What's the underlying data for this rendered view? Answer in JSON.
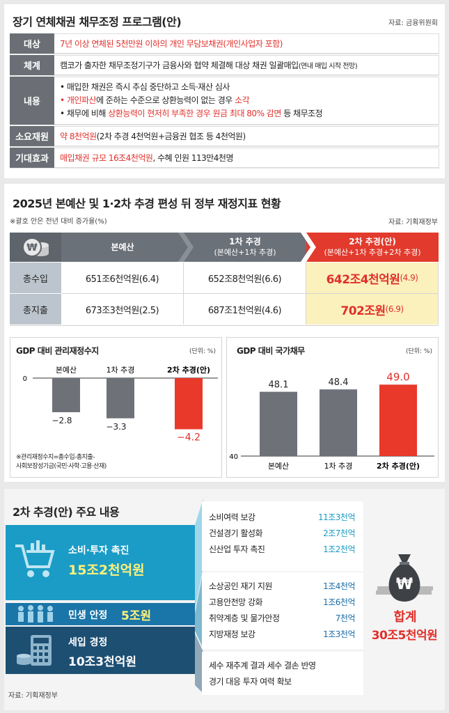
{
  "section1": {
    "title": "장기 연체채권 채무조정 프로그램(안)",
    "source": "자료: 금융위원회",
    "rows": [
      {
        "label": "대상",
        "value": "7년 이상 연체된 5천만원 이하의 개인 무담보채권(개인사업자 포함)"
      },
      {
        "label": "체계",
        "value_main": "캠코가 출자한 채무조정기구가 금융사와 협약 체결해 대상 채권 일괄매입",
        "value_note": "(연내 매입 시작 전망)"
      },
      {
        "label": "내용",
        "bullet1": "• 매입한 채권은 즉시 추심 중단하고 소득·재산 심사",
        "bullet2_red": "• 개인파산",
        "bullet2_mid": "에 준하는 수준으로 상환능력이 없는 경우 ",
        "bullet2_red2": "소각",
        "bullet3_pre": "• 채무에 비해 ",
        "bullet3_red": "상환능력이 현저히 부족한 경우 원금 최대 80% 감면",
        "bullet3_post": " 등 채무조정"
      },
      {
        "label": "소요재원",
        "value_red": "약 8천억원",
        "value_rest": "(2차 추경 4천억원+금융권 협조 등 4천억원)"
      },
      {
        "label": "기대효과",
        "value_red": "매입채권 규모 16조4천억원",
        "value_rest": ", 수혜 인원 113만4천명"
      }
    ]
  },
  "section2": {
    "title": "2025년 본예산 및 1·2차 추경 편성 뒤 정부 재정지표 현황",
    "note": "※괄호 안은 전년 대비 증가율(%)",
    "source": "자료: 기획재정부",
    "headers": [
      {
        "main": "본예산",
        "sub": ""
      },
      {
        "main": "1차 추경",
        "sub": "(본예산+1차 추경)"
      },
      {
        "main": "2차 추경(안)",
        "sub": "(본예산+1차 추경+2차 추경)"
      }
    ],
    "rows": [
      {
        "label": "총수입",
        "cells": [
          "651조6천억원(6.4)",
          "652조8천억원(6.6)"
        ],
        "hl_value": "642조4천억원",
        "hl_pct": "(4.9)"
      },
      {
        "label": "총지출",
        "cells": [
          "673조3천억원(2.5)",
          "687조1천억원(4.6)"
        ],
        "hl_value": "702조원",
        "hl_pct": "(6.9)"
      }
    ],
    "footnote1": "※관리재정수지=총수입-총지출-",
    "footnote2": "사회보장성기금(국민·사학·고용·산재)"
  },
  "chart_data": [
    {
      "type": "bar",
      "title": "GDP 대비 관리재정수지",
      "unit": "(단위: %)",
      "categories": [
        "본예산",
        "1차 추경",
        "2차 추경(안)"
      ],
      "values": [
        -2.8,
        -3.3,
        -4.2
      ],
      "value_labels": [
        "−2.8",
        "−3.3",
        "−4.2"
      ],
      "baseline_label": "0",
      "colors": [
        "#6e7278",
        "#6e7278",
        "#e8392b"
      ]
    },
    {
      "type": "bar",
      "title": "GDP 대비 국가채무",
      "unit": "(단위: %)",
      "categories": [
        "본예산",
        "1차 추경",
        "2차 추경(안)"
      ],
      "values": [
        48.1,
        48.4,
        49.0
      ],
      "value_labels": [
        "48.1",
        "48.4",
        "49.0"
      ],
      "baseline_label": "40",
      "ylim": [
        40,
        50
      ],
      "colors": [
        "#6e7278",
        "#6e7278",
        "#e8392b"
      ]
    }
  ],
  "section3": {
    "title": "2차 추경(안) 주요 내용",
    "source": "자료: 기획재정부",
    "groups": [
      {
        "name": "소비·투자 촉진",
        "amount": "15조2천억원",
        "items": [
          {
            "label": "소비여력 보강",
            "amt": "11조3천억"
          },
          {
            "label": "건설경기 활성화",
            "amt": "2조7천억"
          },
          {
            "label": "신산업 투자 촉진",
            "amt": "1조2천억"
          }
        ]
      },
      {
        "name": "민생 안정",
        "amount": "5조원",
        "items": [
          {
            "label": "소상공인 재기 지원",
            "amt": "1조4천억"
          },
          {
            "label": "고용안전망 강화",
            "amt": "1조6천억"
          },
          {
            "label": "취약계층 및 물가안정",
            "amt": "7천억"
          },
          {
            "label": "지방재정 보강",
            "amt": "1조3천억"
          }
        ]
      },
      {
        "name": "세입 경정",
        "amount": "10조3천억원",
        "items": [
          {
            "label": "세수 재추계 결과 세수 결손 반영"
          },
          {
            "label": "경기 대응 투자 여력 확보"
          }
        ]
      }
    ],
    "total_label": "합계",
    "total_value": "30조5천억원",
    "won_symbol": "₩",
    "colors": {
      "teal": "#1b9cc6",
      "navy": "#1d4f73",
      "red": "#e0302a"
    }
  }
}
